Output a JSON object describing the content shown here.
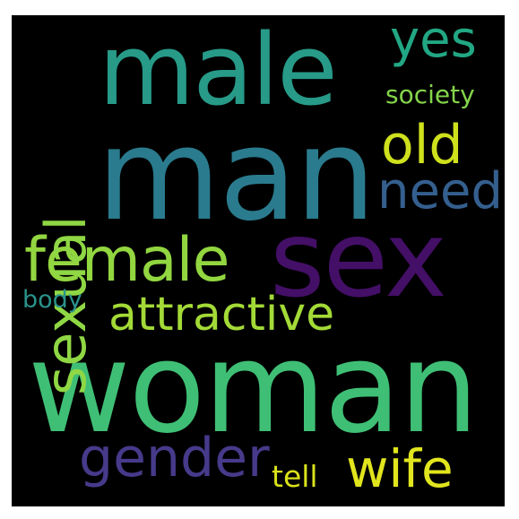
{
  "words": {
    "man": {
      "text": "man",
      "color": "#2a7b8e"
    },
    "woman": {
      "text": "woman",
      "color": "#3fbf75"
    },
    "sex": {
      "text": "sex",
      "color": "#440f66"
    },
    "male": {
      "text": "male",
      "color": "#279a88"
    },
    "female": {
      "text": "female",
      "color": "#92d640"
    },
    "attractive": {
      "text": "attractive",
      "color": "#a3da37"
    },
    "sexual": {
      "text": "sexual",
      "color": "#8fd744"
    },
    "gender": {
      "text": "gender",
      "color": "#463a8b"
    },
    "wife": {
      "text": "wife",
      "color": "#e1e51d"
    },
    "yes": {
      "text": "yes",
      "color": "#22a784"
    },
    "old": {
      "text": "old",
      "color": "#cfe11c"
    },
    "need": {
      "text": "need",
      "color": "#345f8e"
    },
    "society": {
      "text": "society",
      "color": "#84d44b"
    },
    "body": {
      "text": "body",
      "color": "#2a938b"
    },
    "tell": {
      "text": "tell",
      "color": "#dae21a"
    }
  }
}
